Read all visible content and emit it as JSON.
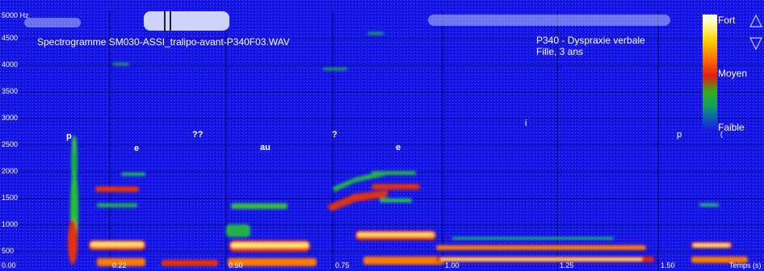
{
  "spectrogram": {
    "file_title": "Spectrogramme SM030-ASSI_tralipo-avant-P340F03.WAV",
    "patient_line1": "P340 -   Dyspraxie verbale",
    "patient_line2": "Fille, 3 ans",
    "y_axis_labels": [
      "5000 Hz",
      "4500",
      "4000",
      "3500",
      "3000",
      "2500",
      "2000",
      "1500",
      "1000",
      "500",
      "0.00"
    ],
    "x_axis_labels": [
      "0.22",
      "0.50",
      "0.75",
      "1.00",
      "1.25",
      "1.50"
    ],
    "x_axis_unit": "Temps (s)",
    "segments": [
      "p",
      "e",
      "??",
      "au",
      "?",
      "e",
      "i",
      "p",
      "("
    ],
    "legend": {
      "high": "Fort",
      "mid": "Moyen",
      "low": "Faible"
    },
    "colors": {
      "background": "#1414e6",
      "grid": "#000000"
    }
  }
}
